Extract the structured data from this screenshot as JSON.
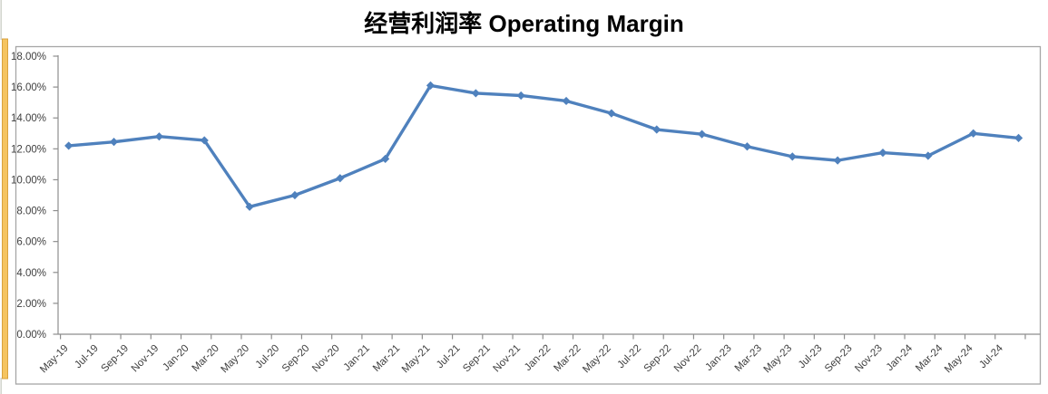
{
  "title": "经营利润率 Operating Margin",
  "chart_data": {
    "type": "line",
    "title": "经营利润率 Operating Margin",
    "legend": "none",
    "gridlines": false,
    "series": [
      {
        "name": "Operating Margin",
        "color": "#4F81BD",
        "marker": "diamond",
        "points": [
          {
            "date": "May-19",
            "value": 12.2
          },
          {
            "date": "Aug-19",
            "value": 12.45
          },
          {
            "date": "Nov-19",
            "value": 12.8
          },
          {
            "date": "Feb-20",
            "value": 12.55
          },
          {
            "date": "May-20",
            "value": 8.25
          },
          {
            "date": "Aug-20",
            "value": 9.0
          },
          {
            "date": "Nov-20",
            "value": 10.1
          },
          {
            "date": "Feb-21",
            "value": 11.35
          },
          {
            "date": "May-21",
            "value": 16.1
          },
          {
            "date": "Aug-21",
            "value": 15.6
          },
          {
            "date": "Nov-21",
            "value": 15.45
          },
          {
            "date": "Feb-22",
            "value": 15.1
          },
          {
            "date": "May-22",
            "value": 14.3
          },
          {
            "date": "Aug-22",
            "value": 13.25
          },
          {
            "date": "Nov-22",
            "value": 12.95
          },
          {
            "date": "Feb-23",
            "value": 12.15
          },
          {
            "date": "May-23",
            "value": 11.5
          },
          {
            "date": "Aug-23",
            "value": 11.25
          },
          {
            "date": "Nov-23",
            "value": 11.75
          },
          {
            "date": "Feb-24",
            "value": 11.55
          },
          {
            "date": "May-24",
            "value": 13.0
          },
          {
            "date": "Aug-24",
            "value": 12.7
          }
        ]
      }
    ],
    "x_axis": {
      "tick_labels": [
        "May-19",
        "Jul-19",
        "Sep-19",
        "Nov-19",
        "Jan-20",
        "Mar-20",
        "May-20",
        "Jul-20",
        "Sep-20",
        "Nov-20",
        "Jan-21",
        "Mar-21",
        "May-21",
        "Jul-21",
        "Sep-21",
        "Nov-21",
        "Jan-22",
        "Mar-22",
        "May-22",
        "Jul-22",
        "Sep-22",
        "Nov-22",
        "Jan-23",
        "Mar-23",
        "May-23",
        "Jul-23",
        "Sep-23",
        "Nov-23",
        "Jan-24",
        "Mar-24",
        "May-24",
        "Jul-24"
      ],
      "label_rotation_deg": 45,
      "months_per_label": 2,
      "months_per_data_point": 3
    },
    "y_axis": {
      "tick_labels": [
        "18.00%",
        "16.00%",
        "14.00%",
        "12.00%",
        "10.00%",
        "8.00%",
        "6.00%",
        "4.00%",
        "2.00%",
        "0.00%"
      ],
      "min": 0,
      "max": 18,
      "tick_step": 2,
      "unit": "percent"
    },
    "colors": {
      "series_line": "#4F81BD",
      "axis_line": "#8E8E8E",
      "chart_border": "#A6A6A6",
      "tick_label_text": "#3F3F3F",
      "title_text": "#000000"
    }
  },
  "decor": {
    "left_highlight_strip": {
      "fill": "#F5C460",
      "border": "#D9A23E"
    },
    "spreadsheet_gridline_color": "#D3D6CE",
    "background": "#FFFFFF"
  }
}
